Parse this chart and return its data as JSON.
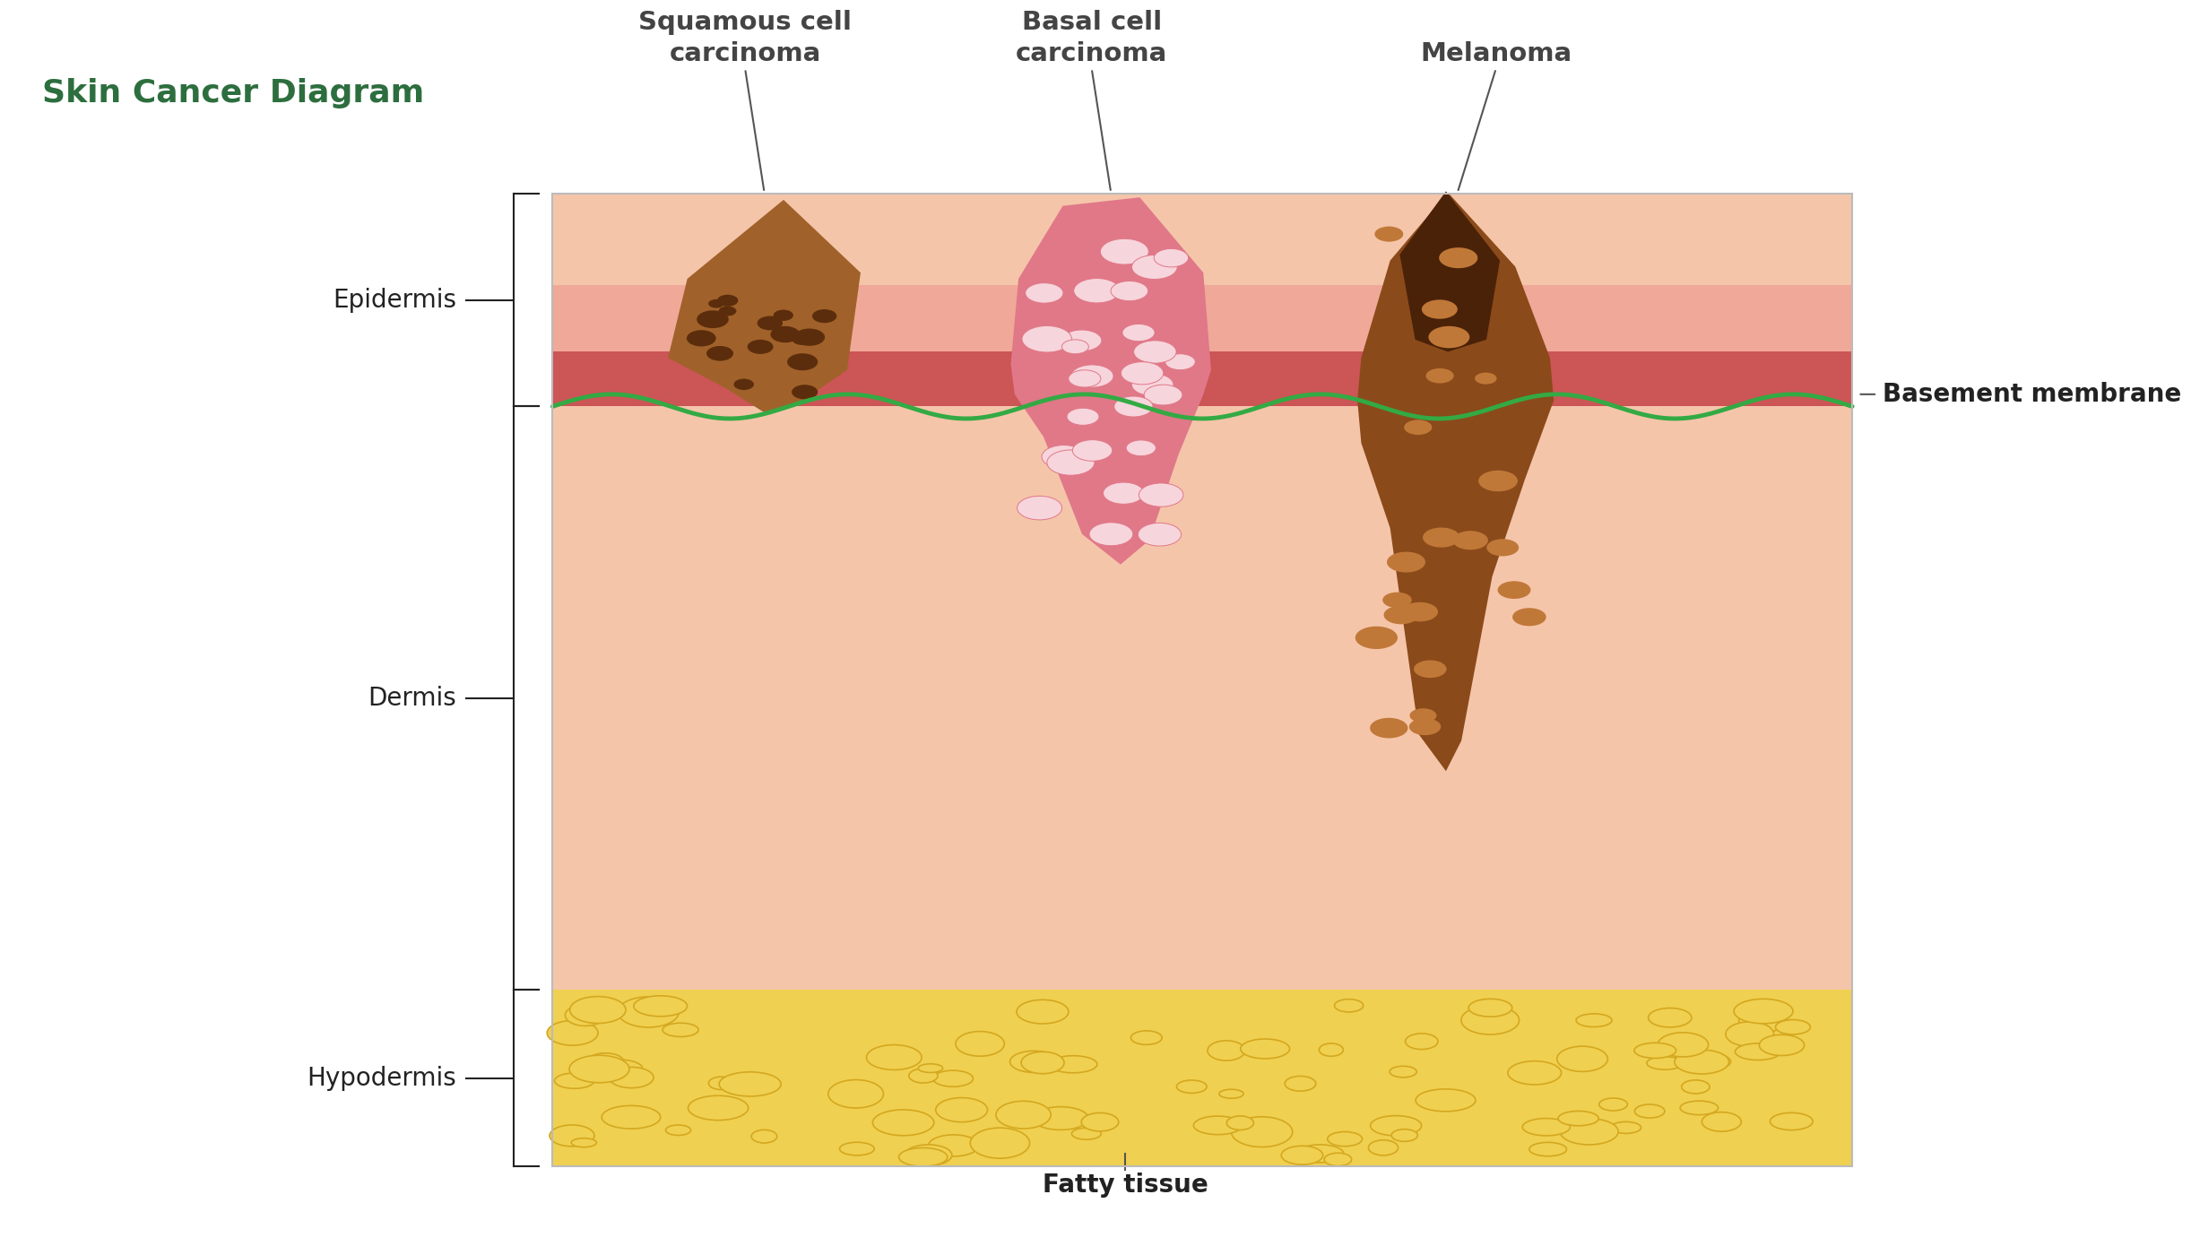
{
  "title": "Skin Cancer Diagram",
  "title_color": "#2d6e3e",
  "title_fontsize": 26,
  "bg_color": "#ffffff",
  "fig_width": 24.44,
  "fig_height": 14.0,
  "layers": {
    "skin_top": "#f5c5aa",
    "epid_light": "#f0a898",
    "epid_dark": "#cc5555",
    "dermis": "#f5c5aa",
    "fatty": "#f0d050",
    "fatty_edge": "#d4a820",
    "basement": "#33aa44"
  },
  "labels": {
    "epidermis": "Epidermis",
    "dermis": "Dermis",
    "hypodermis": "Hypodermis",
    "basement_membrane": "Basement membrane",
    "fatty_tissue": "Fatty tissue",
    "squamous": "Squamous cell\ncarcinoma",
    "basal": "Basal cell\ncarcinoma",
    "melanoma": "Melanoma"
  },
  "colors": {
    "sq_fill": "#a0622a",
    "sq_spot": "#5c2d0c",
    "bc_fill": "#e07888",
    "bc_spot": "#f7d5dc",
    "ml_fill": "#8b4a1a",
    "ml_dark": "#4a2208",
    "ml_spot": "#c07838"
  },
  "label_fontsize": 20,
  "ann_fontsize": 21
}
